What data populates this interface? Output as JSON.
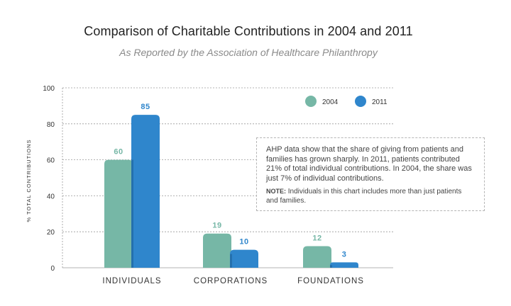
{
  "chart_data": {
    "type": "bar",
    "title": "Comparison of Charitable Contributions in 2004 and 2011",
    "subtitle": "As Reported by the Association of Healthcare Philanthropy",
    "xlabel": "",
    "ylabel": "% TOTAL CONTRIBUTIONS",
    "ylim": [
      0,
      100
    ],
    "yticks": [
      0,
      20,
      40,
      60,
      80,
      100
    ],
    "grid": true,
    "legend_position": "top-right",
    "categories": [
      "INDIVIDUALS",
      "CORPORATIONS",
      "FOUNDATIONS"
    ],
    "series": [
      {
        "name": "2004",
        "values": [
          60,
          19,
          12
        ],
        "color": "#76b7a6",
        "shade": "#2f6d5f"
      },
      {
        "name": "2011",
        "values": [
          85,
          10,
          3
        ],
        "color": "#2f86cc",
        "shade": "#1c5f94"
      }
    ]
  },
  "note": {
    "text": "AHP data show that the share of giving from patients and families has grown sharply. In 2011, patients contributed 21% of total individual contributions. In 2004, the share was just 7% of individual contributions.",
    "label": "NOTE:",
    "footnote": "Individuals in this chart includes more than just patients and families."
  }
}
